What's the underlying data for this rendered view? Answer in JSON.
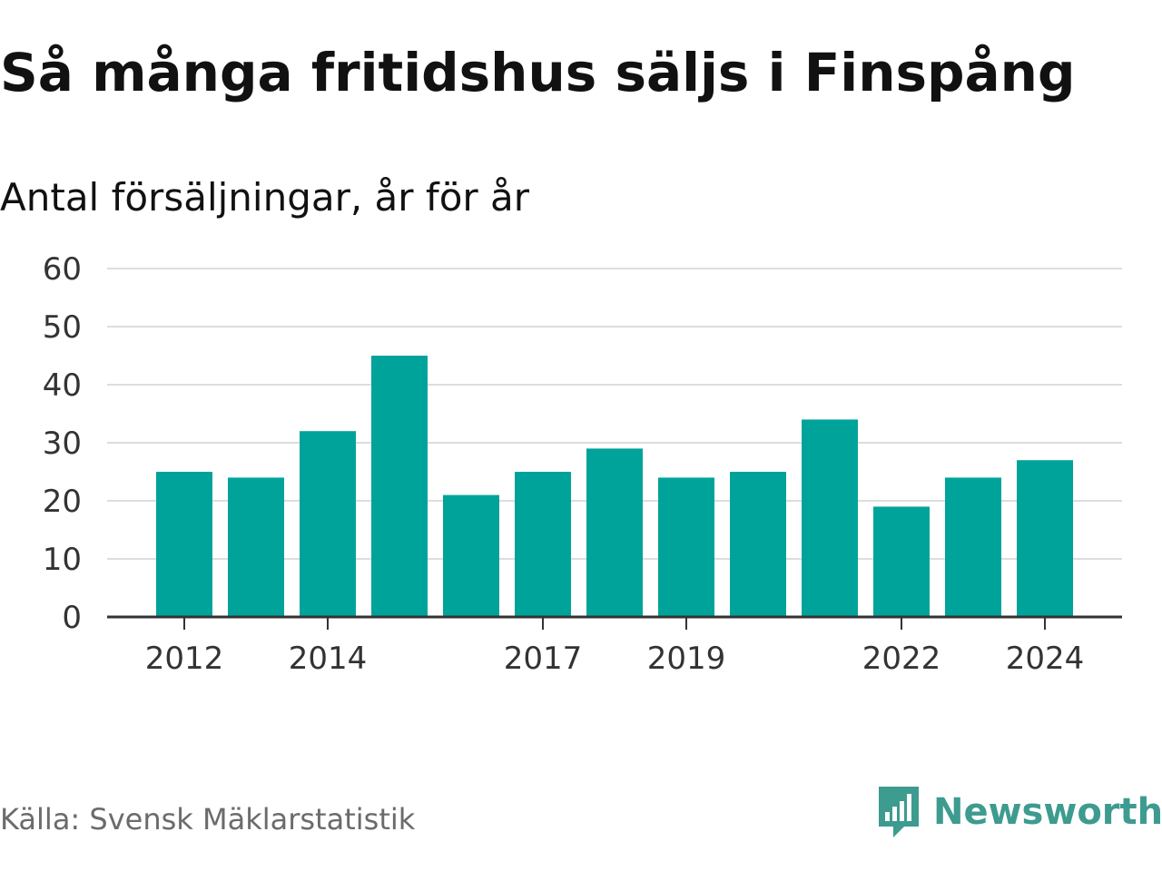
{
  "header": {
    "title": "Så många fritidshus säljs i Finspång",
    "subtitle": "Antal försäljningar, år för år"
  },
  "footer": {
    "source": "Källa: Svensk Mäklarstatistik",
    "brand": "Newsworthy",
    "brand_icon": "chat-bubble-bar-chart-icon",
    "brand_color": "#3d9b8f"
  },
  "chart_data": {
    "type": "bar",
    "title": "Så många fritidshus säljs i Finspång",
    "subtitle": "Antal försäljningar, år för år",
    "xlabel": "",
    "ylabel": "",
    "categories": [
      "2012",
      "2013",
      "2014",
      "2015",
      "2016",
      "2017",
      "2018",
      "2019",
      "2020",
      "2021",
      "2022",
      "2023",
      "2024"
    ],
    "values": [
      25,
      24,
      32,
      45,
      21,
      25,
      29,
      24,
      25,
      34,
      19,
      24,
      27
    ],
    "x_tick_labels": [
      "2012",
      "2014",
      "2017",
      "2019",
      "2022",
      "2024"
    ],
    "y_ticks": [
      0,
      10,
      20,
      30,
      40,
      50,
      60
    ],
    "ylim": [
      0,
      60
    ],
    "grid": true,
    "legend": "none",
    "bar_color": "#00a39a",
    "grid_color": "#dddddd",
    "axis_color": "#333333"
  }
}
